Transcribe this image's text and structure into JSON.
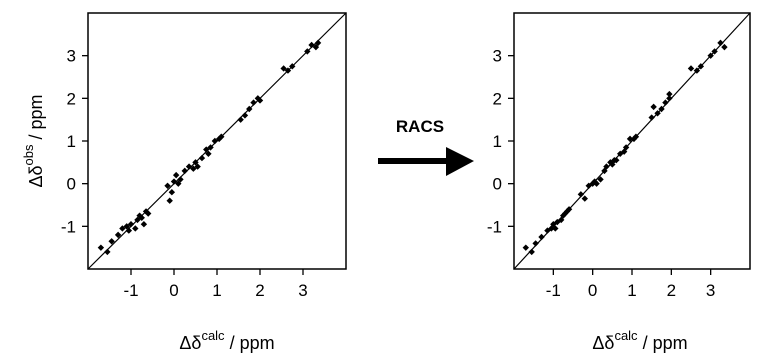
{
  "chart_data": [
    {
      "type": "scatter",
      "title": "",
      "xlabel": "Δδcalc / ppm",
      "xlabel_base": "Δδ",
      "xlabel_sup": "calc",
      "xlabel_unit": " / ppm",
      "ylabel": "Δδobs / ppm",
      "ylabel_base": "Δδ",
      "ylabel_sup": "obs",
      "ylabel_unit": " / ppm",
      "xlim": [
        -2,
        4
      ],
      "ylim": [
        -2,
        4
      ],
      "xticks": [
        -1,
        0,
        1,
        2,
        3
      ],
      "yticks": [
        -1,
        0,
        1,
        2,
        3
      ],
      "grid": false,
      "reference_line": "y = x",
      "points": [
        [
          -1.7,
          -1.5
        ],
        [
          -1.55,
          -1.6
        ],
        [
          -1.45,
          -1.35
        ],
        [
          -1.3,
          -1.2
        ],
        [
          -1.2,
          -1.05
        ],
        [
          -1.1,
          -1.0
        ],
        [
          -1.05,
          -1.1
        ],
        [
          -1.0,
          -0.95
        ],
        [
          -0.9,
          -1.05
        ],
        [
          -0.85,
          -0.85
        ],
        [
          -0.8,
          -0.75
        ],
        [
          -0.75,
          -0.8
        ],
        [
          -0.7,
          -0.95
        ],
        [
          -0.65,
          -0.65
        ],
        [
          -0.6,
          -0.7
        ],
        [
          -0.15,
          -0.05
        ],
        [
          -0.1,
          -0.4
        ],
        [
          -0.05,
          -0.2
        ],
        [
          0.0,
          0.05
        ],
        [
          0.05,
          0.2
        ],
        [
          0.1,
          0.0
        ],
        [
          0.15,
          0.1
        ],
        [
          0.25,
          0.3
        ],
        [
          0.35,
          0.4
        ],
        [
          0.45,
          0.35
        ],
        [
          0.5,
          0.5
        ],
        [
          0.55,
          0.4
        ],
        [
          0.65,
          0.6
        ],
        [
          0.75,
          0.8
        ],
        [
          0.8,
          0.7
        ],
        [
          0.85,
          0.85
        ],
        [
          0.95,
          1.0
        ],
        [
          1.05,
          1.05
        ],
        [
          1.1,
          1.1
        ],
        [
          1.55,
          1.5
        ],
        [
          1.65,
          1.6
        ],
        [
          1.75,
          1.75
        ],
        [
          1.85,
          1.9
        ],
        [
          1.95,
          2.0
        ],
        [
          2.0,
          1.95
        ],
        [
          2.55,
          2.7
        ],
        [
          2.65,
          2.65
        ],
        [
          2.75,
          2.75
        ],
        [
          3.1,
          3.1
        ],
        [
          3.2,
          3.25
        ],
        [
          3.3,
          3.2
        ],
        [
          3.35,
          3.3
        ]
      ]
    },
    {
      "type": "scatter",
      "title": "",
      "xlabel": "Δδcalc / ppm",
      "xlabel_base": "Δδ",
      "xlabel_sup": "calc",
      "xlabel_unit": " / ppm",
      "ylabel": "",
      "xlim": [
        -2,
        4
      ],
      "ylim": [
        -2,
        4
      ],
      "xticks": [
        -1,
        0,
        1,
        2,
        3
      ],
      "yticks": [
        -1,
        0,
        1,
        2,
        3
      ],
      "grid": false,
      "reference_line": "y = x",
      "points": [
        [
          -1.7,
          -1.5
        ],
        [
          -1.55,
          -1.6
        ],
        [
          -1.45,
          -1.4
        ],
        [
          -1.3,
          -1.25
        ],
        [
          -1.15,
          -1.1
        ],
        [
          -1.05,
          -1.05
        ],
        [
          -1.0,
          -0.95
        ],
        [
          -0.95,
          -1.05
        ],
        [
          -0.9,
          -0.9
        ],
        [
          -0.8,
          -0.85
        ],
        [
          -0.75,
          -0.75
        ],
        [
          -0.7,
          -0.7
        ],
        [
          -0.65,
          -0.65
        ],
        [
          -0.6,
          -0.6
        ],
        [
          -0.3,
          -0.25
        ],
        [
          -0.2,
          -0.35
        ],
        [
          -0.1,
          -0.05
        ],
        [
          0.0,
          0.0
        ],
        [
          0.05,
          0.05
        ],
        [
          0.1,
          0.0
        ],
        [
          0.2,
          0.1
        ],
        [
          0.3,
          0.3
        ],
        [
          0.35,
          0.4
        ],
        [
          0.45,
          0.5
        ],
        [
          0.5,
          0.45
        ],
        [
          0.55,
          0.55
        ],
        [
          0.6,
          0.55
        ],
        [
          0.7,
          0.7
        ],
        [
          0.8,
          0.75
        ],
        [
          0.85,
          0.85
        ],
        [
          0.95,
          1.05
        ],
        [
          1.05,
          1.05
        ],
        [
          1.1,
          1.1
        ],
        [
          1.5,
          1.55
        ],
        [
          1.55,
          1.8
        ],
        [
          1.65,
          1.65
        ],
        [
          1.75,
          1.75
        ],
        [
          1.85,
          1.9
        ],
        [
          1.95,
          2.0
        ],
        [
          1.95,
          2.1
        ],
        [
          2.5,
          2.7
        ],
        [
          2.65,
          2.65
        ],
        [
          2.75,
          2.75
        ],
        [
          3.0,
          3.0
        ],
        [
          3.1,
          3.1
        ],
        [
          3.25,
          3.3
        ],
        [
          3.35,
          3.2
        ]
      ]
    }
  ],
  "transition": {
    "label": "RACS"
  }
}
